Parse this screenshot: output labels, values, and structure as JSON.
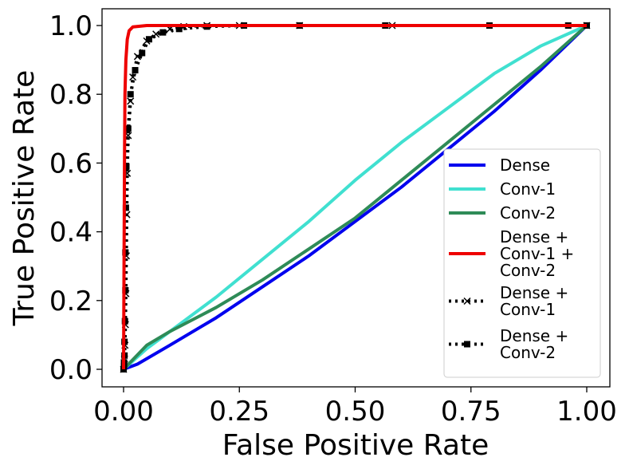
{
  "chart_data": {
    "type": "line",
    "title": "",
    "xlabel": "False Positive Rate",
    "ylabel": "True Positive Rate",
    "xlim": [
      0.0,
      1.0
    ],
    "ylim": [
      0.0,
      1.0
    ],
    "xticks": [
      "0.00",
      "0.25",
      "0.50",
      "0.75",
      "1.00"
    ],
    "yticks": [
      "0.0",
      "0.2",
      "0.4",
      "0.6",
      "0.8",
      "1.0"
    ],
    "grid": false,
    "legend_position": "lower-right",
    "series": [
      {
        "name": "Dense",
        "legend_lines": [
          "Dense"
        ],
        "color": "#0000ee",
        "style": "solid",
        "marker": "none",
        "points": [
          [
            0,
            0
          ],
          [
            0.03,
            0.015
          ],
          [
            0.1,
            0.07
          ],
          [
            0.2,
            0.15
          ],
          [
            0.3,
            0.24
          ],
          [
            0.4,
            0.33
          ],
          [
            0.5,
            0.43
          ],
          [
            0.6,
            0.53
          ],
          [
            0.7,
            0.64
          ],
          [
            0.8,
            0.75
          ],
          [
            0.9,
            0.87
          ],
          [
            1.0,
            1.0
          ]
        ]
      },
      {
        "name": "Conv-1",
        "legend_lines": [
          "Conv-1"
        ],
        "color": "#40e0d0",
        "style": "solid",
        "marker": "none",
        "points": [
          [
            0,
            0
          ],
          [
            0.05,
            0.06
          ],
          [
            0.1,
            0.11
          ],
          [
            0.2,
            0.21
          ],
          [
            0.3,
            0.32
          ],
          [
            0.4,
            0.43
          ],
          [
            0.5,
            0.55
          ],
          [
            0.6,
            0.66
          ],
          [
            0.7,
            0.76
          ],
          [
            0.8,
            0.86
          ],
          [
            0.9,
            0.94
          ],
          [
            1.0,
            1.0
          ]
        ]
      },
      {
        "name": "Conv-2",
        "legend_lines": [
          "Conv-2"
        ],
        "color": "#2e8b57",
        "style": "solid",
        "marker": "none",
        "points": [
          [
            0,
            0
          ],
          [
            0.05,
            0.07
          ],
          [
            0.1,
            0.11
          ],
          [
            0.2,
            0.18
          ],
          [
            0.3,
            0.26
          ],
          [
            0.4,
            0.35
          ],
          [
            0.5,
            0.44
          ],
          [
            0.6,
            0.55
          ],
          [
            0.7,
            0.66
          ],
          [
            0.8,
            0.77
          ],
          [
            0.9,
            0.88
          ],
          [
            1.0,
            1.0
          ]
        ]
      },
      {
        "name": "Dense + Conv-1 + Conv-2",
        "legend_lines": [
          "Dense +",
          " Conv-1 +",
          " Conv-2"
        ],
        "color": "#ee0000",
        "style": "solid",
        "marker": "none",
        "points": [
          [
            0,
            0
          ],
          [
            0.001,
            0.3
          ],
          [
            0.002,
            0.6
          ],
          [
            0.003,
            0.8
          ],
          [
            0.005,
            0.9
          ],
          [
            0.008,
            0.96
          ],
          [
            0.012,
            0.985
          ],
          [
            0.02,
            0.996
          ],
          [
            0.05,
            1.0
          ],
          [
            1.0,
            1.0
          ]
        ]
      },
      {
        "name": "Dense + Conv-1",
        "legend_lines": [
          "Dense +",
          "Conv-1"
        ],
        "color": "#000000",
        "style": "dotted",
        "marker": "x",
        "points": [
          [
            0,
            0
          ],
          [
            0.002,
            0.03
          ],
          [
            0.003,
            0.07
          ],
          [
            0.004,
            0.13
          ],
          [
            0.005,
            0.22
          ],
          [
            0.006,
            0.33
          ],
          [
            0.007,
            0.45
          ],
          [
            0.008,
            0.57
          ],
          [
            0.01,
            0.68
          ],
          [
            0.015,
            0.78
          ],
          [
            0.02,
            0.85
          ],
          [
            0.03,
            0.91
          ],
          [
            0.05,
            0.955
          ],
          [
            0.07,
            0.975
          ],
          [
            0.1,
            0.99
          ],
          [
            0.13,
            0.997
          ],
          [
            0.18,
            1.0
          ],
          [
            0.25,
            1.0
          ],
          [
            0.38,
            1.0
          ],
          [
            0.58,
            1.0
          ],
          [
            1.0,
            1.0
          ]
        ]
      },
      {
        "name": "Dense + Conv-2",
        "legend_lines": [
          "Dense +",
          "Conv-2"
        ],
        "color": "#000000",
        "style": "dotted",
        "marker": "square",
        "points": [
          [
            0,
            0
          ],
          [
            0.001,
            0.01
          ],
          [
            0.001,
            0.02
          ],
          [
            0.002,
            0.04
          ],
          [
            0.002,
            0.08
          ],
          [
            0.003,
            0.14
          ],
          [
            0.004,
            0.23
          ],
          [
            0.004,
            0.34
          ],
          [
            0.005,
            0.47
          ],
          [
            0.006,
            0.59
          ],
          [
            0.01,
            0.7
          ],
          [
            0.015,
            0.8
          ],
          [
            0.025,
            0.87
          ],
          [
            0.04,
            0.92
          ],
          [
            0.055,
            0.96
          ],
          [
            0.085,
            0.98
          ],
          [
            0.12,
            0.99
          ],
          [
            0.18,
            0.997
          ],
          [
            0.26,
            1.0
          ],
          [
            0.38,
            1.0
          ],
          [
            0.565,
            1.0
          ],
          [
            0.79,
            1.0
          ],
          [
            0.96,
            1.0
          ],
          [
            1.0,
            1.0
          ]
        ]
      }
    ]
  }
}
